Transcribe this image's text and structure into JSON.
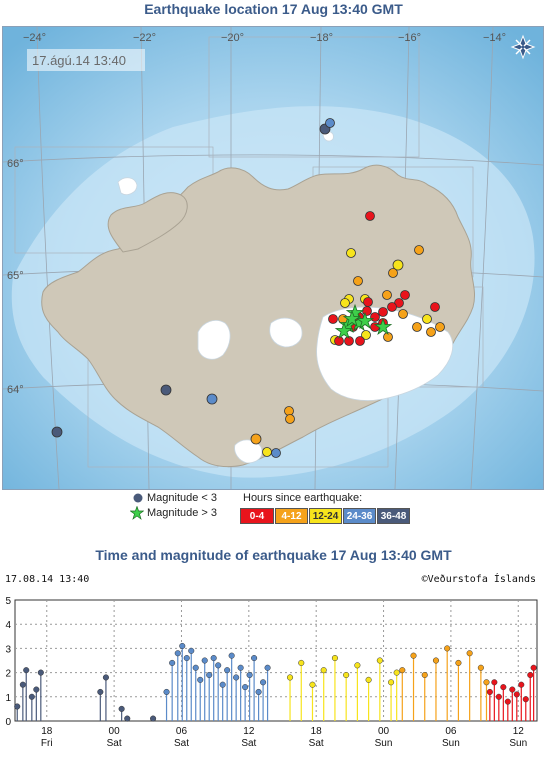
{
  "map": {
    "title": "Earthquake location   17 Aug 13:40 GMT",
    "timestamp": "17.ágú.14  13:40",
    "lon_labels": [
      "−24°",
      "−22°",
      "−20°",
      "−18°",
      "−16°",
      "−14°"
    ],
    "lat_labels": [
      "66°",
      "65°",
      "64°"
    ],
    "compass_icon": "compass-icon"
  },
  "legend": {
    "mag_small": "Magnitude < 3",
    "mag_large": "Magnitude > 3",
    "hours_title": "Hours since earthquake:",
    "bins": [
      {
        "label": "0-4",
        "color": "#e8141c",
        "text": "#ffffff"
      },
      {
        "label": "4-12",
        "color": "#f5a21a",
        "text": "#ffffff"
      },
      {
        "label": "12-24",
        "color": "#f7e41c",
        "text": "#333333"
      },
      {
        "label": "24-36",
        "color": "#5b8bc9",
        "text": "#ffffff"
      },
      {
        "label": "36-48",
        "color": "#4a5a7a",
        "text": "#ffffff"
      }
    ]
  },
  "chart": {
    "title": "Time and magnitude of earthquake   17 Aug 13:40 GMT",
    "timestamp": "17.08.14 13:40",
    "credit": "©Veðurstofa Íslands"
  },
  "chart_data": {
    "type": "scatter",
    "y_ticks": [
      "0",
      "1",
      "2",
      "3",
      "4",
      "5"
    ],
    "ylim": [
      0,
      5
    ],
    "x_ticks": [
      {
        "hour": "18",
        "day": "Fri"
      },
      {
        "hour": "00",
        "day": "Sat"
      },
      {
        "hour": "06",
        "day": "Sat"
      },
      {
        "hour": "12",
        "day": "Sat"
      },
      {
        "hour": "18",
        "day": "Sat"
      },
      {
        "hour": "00",
        "day": "Sun"
      },
      {
        "hour": "06",
        "day": "Sun"
      },
      {
        "hour": "12",
        "day": "Sun"
      }
    ],
    "xlim_hours": [
      -46.5,
      0
    ],
    "tick_hours": [
      -43.67,
      -37.67,
      -31.67,
      -25.67,
      -19.67,
      -13.67,
      -7.67,
      -1.67
    ],
    "series": [
      {
        "color": "#4a5a7a",
        "hours": [
          -46.3,
          -45.8,
          -45.5,
          -45.0,
          -44.6,
          -44.2,
          -38.9,
          -38.4,
          -37.0,
          -36.5,
          -34.2
        ],
        "mags": [
          0.6,
          1.5,
          2.1,
          1.0,
          1.3,
          2.0,
          1.2,
          1.8,
          0.5,
          0.1,
          0.1
        ]
      },
      {
        "color": "#5b8bc9",
        "hours": [
          -33,
          -32.5,
          -32,
          -31.6,
          -31.2,
          -30.8,
          -30.4,
          -30,
          -29.6,
          -29.2,
          -28.8,
          -28.4,
          -28,
          -27.6,
          -27.2,
          -26.8,
          -26.4,
          -26,
          -25.6,
          -25.2,
          -24.8,
          -24.4,
          -24
        ],
        "mags": [
          1.2,
          2.4,
          2.8,
          3.1,
          2.6,
          2.9,
          2.2,
          1.7,
          2.5,
          1.9,
          2.6,
          2.3,
          1.5,
          2.1,
          2.7,
          1.8,
          2.2,
          1.4,
          1.9,
          2.6,
          1.2,
          1.6,
          2.2
        ]
      },
      {
        "color": "#f7e41c",
        "hours": [
          -22,
          -21,
          -20,
          -19,
          -18,
          -17,
          -16,
          -15,
          -14,
          -13,
          -12.5
        ],
        "mags": [
          1.8,
          2.4,
          1.5,
          2.1,
          2.6,
          1.9,
          2.3,
          1.7,
          2.5,
          1.6,
          2.0
        ]
      },
      {
        "color": "#f5a21a",
        "hours": [
          -12,
          -11,
          -10,
          -9,
          -8,
          -7,
          -6,
          -5,
          -4.5
        ],
        "mags": [
          2.1,
          2.7,
          1.9,
          2.5,
          3.0,
          2.4,
          2.8,
          2.2,
          1.6
        ]
      },
      {
        "color": "#e8141c",
        "hours": [
          -4.2,
          -3.8,
          -3.4,
          -3.0,
          -2.6,
          -2.2,
          -1.8,
          -1.4,
          -1.0,
          -0.6,
          -0.3
        ],
        "mags": [
          1.2,
          1.6,
          1.0,
          1.4,
          0.8,
          1.3,
          1.1,
          1.5,
          0.9,
          1.9,
          2.2
        ]
      }
    ]
  }
}
